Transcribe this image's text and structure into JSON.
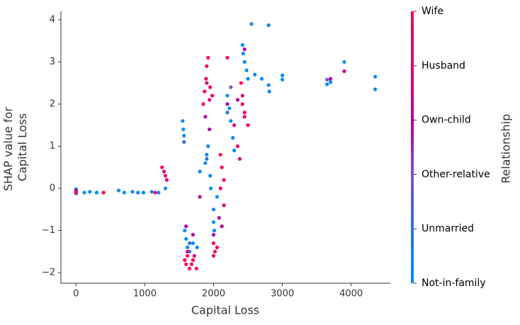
{
  "chart_data": {
    "type": "scatter",
    "xlabel": "Capital Loss",
    "ylabel": [
      "SHAP value for",
      "Capital Loss"
    ],
    "colorbar_label": "Relationship",
    "xlim": [
      -220,
      4570
    ],
    "ylim": [
      -2.25,
      4.2
    ],
    "xticks": [
      0,
      1000,
      2000,
      3000,
      4000
    ],
    "yticks": [
      {
        "value": -2,
        "label": "−2"
      },
      {
        "value": -1,
        "label": "−1"
      },
      0,
      1,
      2,
      3,
      4
    ],
    "series": [
      {
        "name": "Wife",
        "color": "#ff0052",
        "x": [
          0,
          400,
          1150,
          1250,
          1300,
          1580,
          1600,
          1620,
          1650,
          1700,
          1750,
          1850,
          1870,
          1890,
          1900,
          1920,
          1950,
          1980,
          2000,
          2020,
          2050,
          2100,
          2120,
          2150,
          2200,
          2400,
          2420,
          2450,
          2500
        ],
        "values": [
          -0.1,
          -0.1,
          -0.1,
          0.5,
          0.3,
          -1.7,
          -1.8,
          -1.6,
          -1.9,
          -1.7,
          -1.9,
          2.0,
          2.3,
          2.6,
          2.9,
          3.1,
          2.4,
          2.2,
          -1.3,
          -1.5,
          -1.4,
          0.8,
          0.5,
          0.2,
          3.1,
          2.5,
          2.0,
          1.8,
          1.5
        ]
      },
      {
        "name": "Husband",
        "color": "#e0007a",
        "x": [
          1280,
          1320,
          1620,
          1680,
          1720,
          1900,
          1940,
          2000,
          2100,
          2150,
          2300,
          2350,
          2380,
          2420,
          2450
        ],
        "values": [
          0.4,
          0.2,
          -1.5,
          -1.8,
          -1.6,
          2.5,
          2.1,
          -1.6,
          0.0,
          -0.4,
          1.5,
          1.0,
          0.7,
          2.2,
          1.7
        ]
      },
      {
        "name": "Own-child",
        "color": "#b400a0",
        "x": [
          0,
          1600,
          1700,
          1800,
          1880,
          1940,
          2000,
          2080,
          2120,
          2200,
          2350,
          2450,
          3700,
          3900
        ],
        "values": [
          -0.05,
          -0.9,
          -1.1,
          -0.2,
          1.7,
          1.4,
          -1.1,
          -0.7,
          -0.9,
          2.0,
          2.1,
          3.3,
          2.6,
          2.78
        ]
      },
      {
        "name": "Other-relative",
        "color": "#7b52c8",
        "x": [
          2250,
          3650
        ],
        "values": [
          2.4,
          2.58
        ]
      },
      {
        "name": "Unmarried",
        "color": "#2f73d8",
        "x": [
          1570,
          1650,
          1900,
          2200
        ],
        "values": [
          1.1,
          -1.3,
          0.7,
          1.8
        ]
      },
      {
        "name": "Not-in-family",
        "color": "#008bfb",
        "x": [
          0,
          0,
          0,
          120,
          200,
          300,
          620,
          700,
          820,
          900,
          980,
          1100,
          1200,
          1300,
          1550,
          1560,
          1570,
          1580,
          1600,
          1620,
          1650,
          1700,
          1760,
          1800,
          1880,
          1900,
          1920,
          1950,
          1960,
          2000,
          2000,
          2010,
          2050,
          2200,
          2230,
          2250,
          2280,
          2300,
          2420,
          2430,
          2450,
          2480,
          2500,
          2550,
          2600,
          2700,
          2800,
          2800,
          2810,
          3000,
          3000,
          3650,
          3700,
          3900,
          4350,
          4350
        ],
        "values": [
          -0.02,
          -0.08,
          -0.12,
          -0.1,
          -0.08,
          -0.1,
          -0.05,
          -0.1,
          -0.08,
          -0.1,
          -0.1,
          -0.08,
          -0.1,
          0,
          1.6,
          1.4,
          1.25,
          -1.0,
          -1.2,
          -1.4,
          -1.5,
          -1.3,
          -1.4,
          0.4,
          0.6,
          0.8,
          1.0,
          0.3,
          0.0,
          -0.5,
          -0.8,
          -1.0,
          -0.2,
          2.2,
          1.9,
          1.6,
          1.2,
          0.9,
          3.4,
          3.2,
          3.0,
          2.8,
          2.6,
          3.9,
          2.7,
          2.6,
          3.87,
          2.45,
          2.3,
          2.68,
          2.58,
          2.47,
          2.52,
          3.0,
          2.65,
          2.35
        ]
      }
    ]
  }
}
